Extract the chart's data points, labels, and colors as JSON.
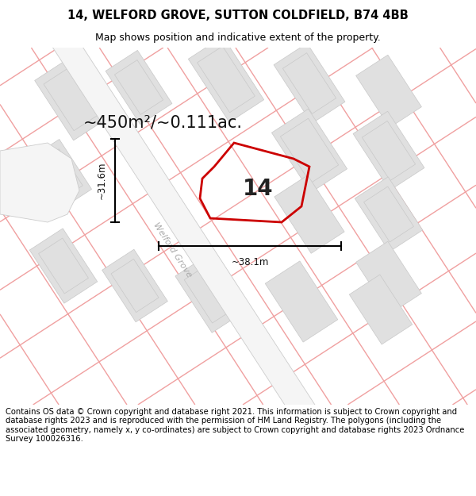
{
  "title_line1": "14, WELFORD GROVE, SUTTON COLDFIELD, B74 4BB",
  "title_line2": "Map shows position and indicative extent of the property.",
  "area_text": "~450m²/~0.111ac.",
  "number_label": "14",
  "dim_height": "~31.6m",
  "dim_width": "~38.1m",
  "street_label": "Welford Grove",
  "footer_text": "Contains OS data © Crown copyright and database right 2021. This information is subject to Crown copyright and database rights 2023 and is reproduced with the permission of HM Land Registry. The polygons (including the associated geometry, namely x, y co-ordinates) are subject to Crown copyright and database rights 2023 Ordnance Survey 100026316.",
  "map_bg": "#ffffff",
  "building_fill": "#e0e0e0",
  "building_edge": "#c8c8c8",
  "plot_edge": "#cc0000",
  "pink_line_color": "#f0a0a0",
  "gray_line_color": "#c0c0c0",
  "road_fill": "#f8f8f8",
  "title_fontsize": 10.5,
  "subtitle_fontsize": 9,
  "area_fontsize": 15,
  "number_fontsize": 20,
  "dim_fontsize": 8.5,
  "street_fontsize": 8,
  "footer_fontsize": 7.2
}
